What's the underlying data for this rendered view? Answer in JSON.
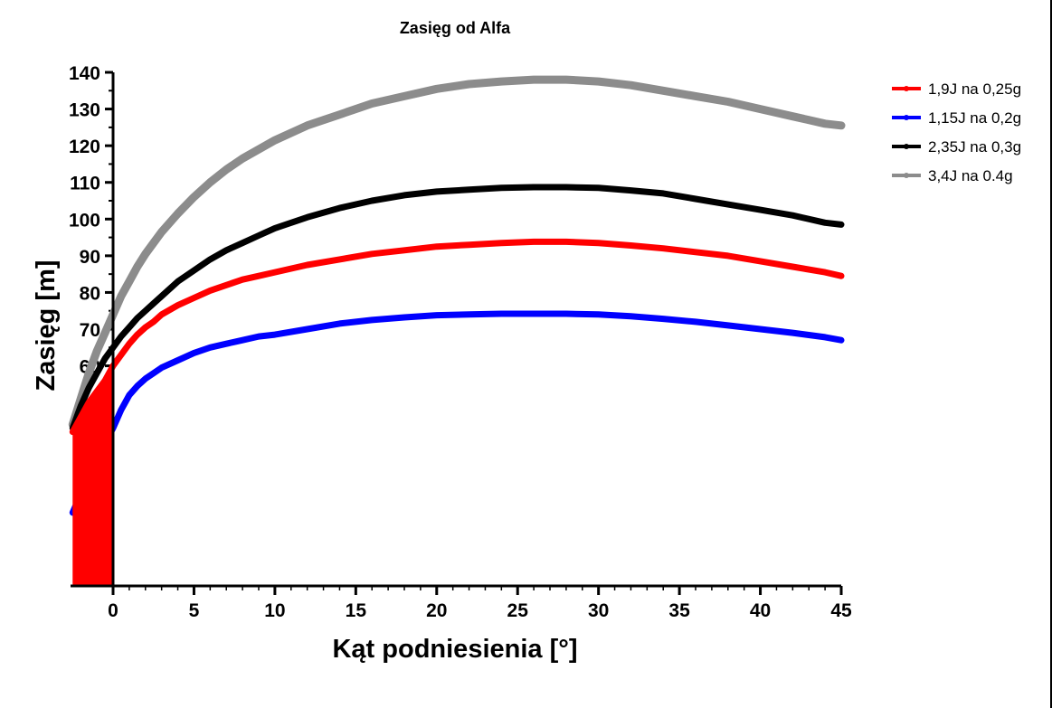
{
  "chart_data": {
    "type": "line",
    "title": "Zasięg od Alfa",
    "xlabel": "Kąt podniesienia [°]",
    "ylabel": "Zasięg [m]",
    "xlim": [
      -2.5,
      45
    ],
    "ylim": [
      0,
      140
    ],
    "xticks": [
      0,
      5,
      10,
      15,
      20,
      25,
      30,
      35,
      40,
      45
    ],
    "xtick_labels": [
      "0",
      "5",
      "10",
      "15",
      "20",
      "25",
      "30",
      "35",
      "40",
      "45"
    ],
    "yticks": [
      60,
      70,
      80,
      90,
      100,
      110,
      120,
      130,
      140
    ],
    "ytick_labels": [
      "60",
      "70",
      "80",
      "90",
      "100",
      "110",
      "120",
      "130",
      "140"
    ],
    "legend_position": "top-right",
    "series": [
      {
        "name": "1,9J na 0,25g",
        "color": "#ff0000",
        "x": [
          -2.5,
          -2,
          -1.5,
          -1,
          -0.5,
          0,
          0.5,
          1,
          1.5,
          2,
          2.5,
          3,
          4,
          5,
          6,
          7,
          8,
          9,
          10,
          12,
          14,
          16,
          18,
          20,
          22,
          24,
          26,
          28,
          30,
          32,
          34,
          36,
          38,
          40,
          42,
          44,
          45
        ],
        "y": [
          42,
          46,
          50,
          53,
          56,
          60,
          63,
          66,
          68.5,
          70.5,
          72,
          74,
          76.5,
          78.5,
          80.5,
          82,
          83.5,
          84.5,
          85.5,
          87.5,
          89,
          90.5,
          91.5,
          92.5,
          93,
          93.5,
          93.8,
          93.8,
          93.5,
          92.8,
          92,
          91,
          90,
          88.5,
          87,
          85.5,
          84.5
        ]
      },
      {
        "name": "1,15J na 0,2g",
        "color": "#0000ff",
        "x": [
          -2.5,
          -2,
          -1.5,
          -1,
          -0.5,
          0,
          0.5,
          1,
          1.5,
          2,
          2.5,
          3,
          4,
          5,
          6,
          7,
          8,
          9,
          10,
          12,
          14,
          16,
          18,
          20,
          22,
          24,
          26,
          28,
          30,
          32,
          34,
          36,
          38,
          40,
          42,
          44,
          45
        ],
        "y": [
          20,
          25,
          30,
          35,
          39,
          43,
          48,
          52,
          54.5,
          56.5,
          58,
          59.5,
          61.5,
          63.5,
          65,
          66,
          67,
          68,
          68.5,
          70,
          71.5,
          72.5,
          73.2,
          73.8,
          74,
          74.2,
          74.2,
          74.2,
          74,
          73.5,
          72.8,
          72,
          71,
          70,
          69,
          67.8,
          67
        ]
      },
      {
        "name": "2,35J na 0,3g",
        "color": "#000000",
        "x": [
          -2.5,
          -2,
          -1.5,
          -1,
          -0.5,
          0,
          0.5,
          1,
          1.5,
          2,
          2.5,
          3,
          4,
          5,
          6,
          7,
          8,
          9,
          10,
          12,
          14,
          16,
          18,
          20,
          22,
          24,
          26,
          28,
          30,
          32,
          34,
          36,
          38,
          40,
          42,
          44,
          45
        ],
        "y": [
          43,
          49,
          54,
          58,
          62,
          65,
          68,
          70.5,
          73,
          75,
          77,
          79,
          83,
          86,
          89,
          91.5,
          93.5,
          95.5,
          97.5,
          100.5,
          103,
          105,
          106.5,
          107.5,
          108,
          108.5,
          108.7,
          108.7,
          108.5,
          107.8,
          107,
          105.5,
          104,
          102.5,
          101,
          99,
          98.5
        ]
      },
      {
        "name": "3,4J na 0.4g",
        "color": "#8c8c8c",
        "x": [
          -2.5,
          -2,
          -1.5,
          -1,
          -0.5,
          0,
          0.5,
          1,
          1.5,
          2,
          2.5,
          3,
          4,
          5,
          6,
          7,
          8,
          9,
          10,
          12,
          14,
          16,
          18,
          20,
          22,
          24,
          26,
          28,
          30,
          32,
          34,
          36,
          38,
          40,
          42,
          44,
          45
        ],
        "y": [
          44,
          51,
          58,
          64,
          69,
          74,
          79,
          83,
          87,
          90.5,
          93.5,
          96.5,
          101.5,
          106,
          110,
          113.5,
          116.5,
          119,
          121.5,
          125.5,
          128.5,
          131.5,
          133.5,
          135.5,
          136.8,
          137.5,
          138,
          138,
          137.5,
          136.5,
          135,
          133.5,
          132,
          130,
          128,
          126,
          125.5
        ]
      }
    ]
  }
}
